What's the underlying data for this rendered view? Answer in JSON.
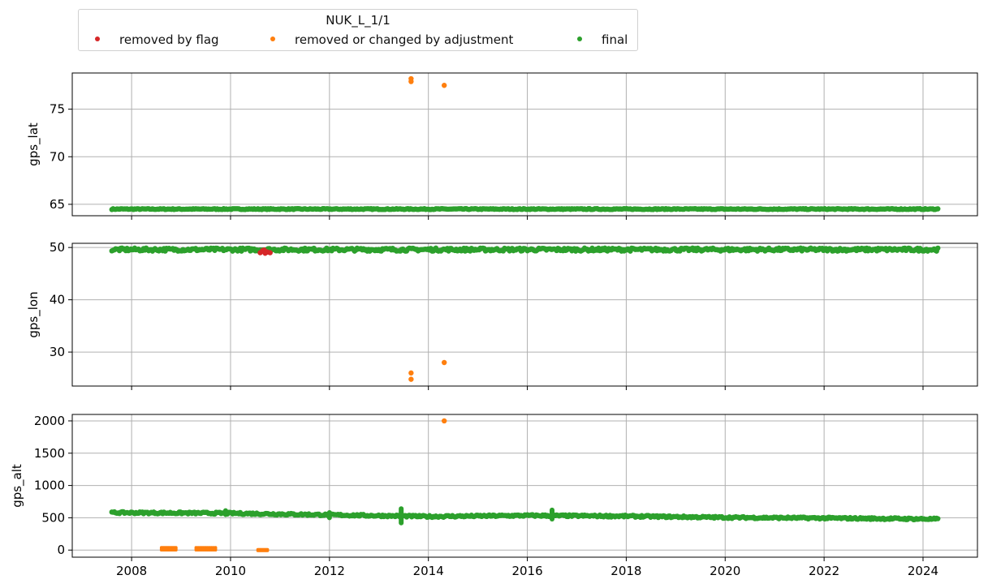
{
  "legend": {
    "title": "NUK_L_1/1",
    "entries": [
      {
        "label": "removed by flag",
        "color": "#d62728"
      },
      {
        "label": "removed or changed by adjustment",
        "color": "#ff7f0e"
      },
      {
        "label": "final",
        "color": "#2ca02c"
      }
    ]
  },
  "chart_data": [
    {
      "type": "scatter",
      "ylabel": "gps_lat",
      "xlim": [
        2006.8,
        2025.1
      ],
      "ylim": [
        63.8,
        78.8
      ],
      "yticks": [
        65,
        70,
        75
      ],
      "xticks": [
        2008,
        2010,
        2012,
        2014,
        2016,
        2018,
        2020,
        2022,
        2024
      ],
      "grid": true,
      "series": [
        {
          "name": "removed by flag",
          "color": "#d62728",
          "points": []
        },
        {
          "name": "removed or changed by adjustment",
          "color": "#ff7f0e",
          "points": [
            [
              2013.65,
              78.2
            ],
            [
              2013.65,
              77.9
            ],
            [
              2014.32,
              77.5
            ]
          ]
        },
        {
          "name": "final",
          "color": "#2ca02c",
          "trend": [
            [
              2007.6,
              64.5
            ],
            [
              2024.3,
              64.5
            ]
          ],
          "spread": 0.05
        }
      ]
    },
    {
      "type": "scatter",
      "ylabel": "gps_lon",
      "xlim": [
        2006.8,
        2025.1
      ],
      "ylim": [
        23.5,
        50.8
      ],
      "yticks": [
        30,
        40,
        50
      ],
      "xticks": [
        2008,
        2010,
        2012,
        2014,
        2016,
        2018,
        2020,
        2022,
        2024
      ],
      "grid": true,
      "series": [
        {
          "name": "removed by flag",
          "color": "#d62728",
          "points": [
            [
              2010.6,
              49.0
            ],
            [
              2010.65,
              49.4
            ],
            [
              2010.7,
              48.9
            ],
            [
              2010.75,
              49.1
            ],
            [
              2010.8,
              49.0
            ],
            [
              2010.68,
              49.5
            ],
            [
              2010.72,
              49.2
            ]
          ]
        },
        {
          "name": "removed or changed by adjustment",
          "color": "#ff7f0e",
          "points": [
            [
              2013.65,
              26.0
            ],
            [
              2013.65,
              24.8
            ],
            [
              2014.32,
              28.0
            ]
          ]
        },
        {
          "name": "final",
          "color": "#2ca02c",
          "trend": [
            [
              2007.6,
              49.6
            ],
            [
              2024.3,
              49.6
            ]
          ],
          "spread": 0.3
        }
      ]
    },
    {
      "type": "scatter",
      "ylabel": "gps_alt",
      "xlim": [
        2006.8,
        2025.1
      ],
      "ylim": [
        -110,
        2100
      ],
      "yticks": [
        0,
        500,
        1000,
        1500,
        2000
      ],
      "xticks": [
        2008,
        2010,
        2012,
        2014,
        2016,
        2018,
        2020,
        2022,
        2024
      ],
      "grid": true,
      "series": [
        {
          "name": "removed by flag",
          "color": "#d62728",
          "points": []
        },
        {
          "name": "removed or changed by adjustment",
          "color": "#ff7f0e",
          "bands": [
            [
              2008.6,
              2008.9,
              0,
              40
            ],
            [
              2009.3,
              2009.7,
              0,
              40
            ],
            [
              2010.55,
              2010.75,
              -10,
              10
            ]
          ],
          "points": [
            [
              2014.32,
              2000
            ]
          ]
        },
        {
          "name": "final",
          "color": "#2ca02c",
          "trend": [
            [
              2007.6,
              580
            ],
            [
              2010.0,
              570
            ],
            [
              2012.0,
              545
            ],
            [
              2014.0,
              520
            ],
            [
              2016.0,
              535
            ],
            [
              2018.0,
              525
            ],
            [
              2020.0,
              505
            ],
            [
              2022.0,
              495
            ],
            [
              2024.3,
              480
            ]
          ],
          "spread": 15,
          "spikes": [
            [
              2013.45,
              420,
              640
            ],
            [
              2016.5,
              480,
              620
            ],
            [
              2012.0,
              500,
              580
            ],
            [
              2009.9,
              550,
              610
            ]
          ]
        }
      ]
    }
  ]
}
